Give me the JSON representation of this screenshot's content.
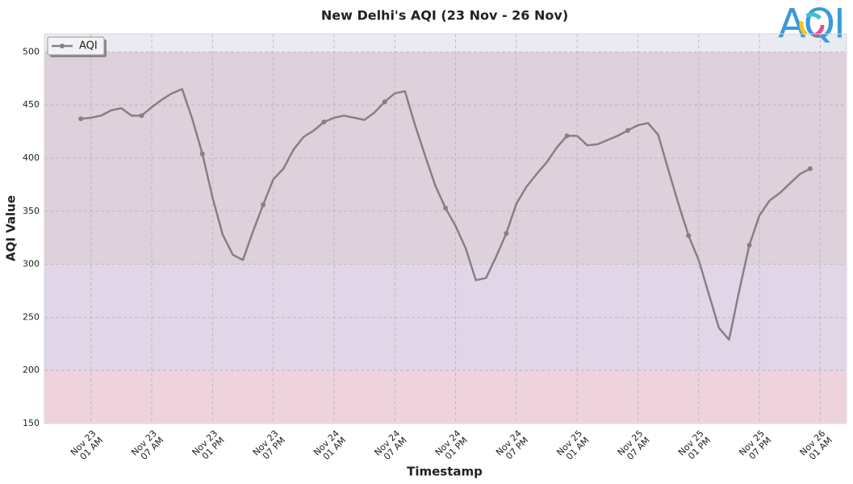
{
  "chart_data": {
    "type": "line",
    "title": "New Delhi's AQI (23 Nov - 26 Nov)",
    "xlabel": "Timestamp",
    "ylabel": "AQI Value",
    "logo": "AQI",
    "legend": "upper left",
    "grid": true,
    "markevery": 6,
    "bands": [
      {
        "from": 150,
        "to": 200,
        "color": "#eed3dc"
      },
      {
        "from": 200,
        "to": 300,
        "color": "#e0d6e8"
      },
      {
        "from": 300,
        "to": 500,
        "color": "#dfd1dc"
      },
      {
        "from": 500,
        "to": 517,
        "color": "#eaeaf2"
      }
    ],
    "xlim": [
      "Nov 22 20:24",
      "Nov 26 03:36"
    ],
    "ylim": [
      150,
      517
    ],
    "yticks": [
      150,
      200,
      250,
      300,
      350,
      400,
      450,
      500
    ],
    "xticks": [
      {
        "value": "Nov 23 01:00",
        "label": "Nov 23\n01 AM"
      },
      {
        "value": "Nov 23 07:00",
        "label": "Nov 23\n07 AM"
      },
      {
        "value": "Nov 23 13:00",
        "label": "Nov 23\n01 PM"
      },
      {
        "value": "Nov 23 19:00",
        "label": "Nov 23\n07 PM"
      },
      {
        "value": "Nov 24 01:00",
        "label": "Nov 24\n01 AM"
      },
      {
        "value": "Nov 24 07:00",
        "label": "Nov 24\n07 AM"
      },
      {
        "value": "Nov 24 13:00",
        "label": "Nov 24\n01 PM"
      },
      {
        "value": "Nov 24 19:00",
        "label": "Nov 24\n07 PM"
      },
      {
        "value": "Nov 25 01:00",
        "label": "Nov 25\n01 AM"
      },
      {
        "value": "Nov 25 07:00",
        "label": "Nov 25\n07 AM"
      },
      {
        "value": "Nov 25 13:00",
        "label": "Nov 25\n01 PM"
      },
      {
        "value": "Nov 25 19:00",
        "label": "Nov 25\n07 PM"
      },
      {
        "value": "Nov 26 01:00",
        "label": "Nov 26\n01 AM"
      }
    ],
    "x": [
      "Nov 23 00:00",
      "Nov 23 01:00",
      "Nov 23 02:00",
      "Nov 23 03:00",
      "Nov 23 04:00",
      "Nov 23 05:00",
      "Nov 23 06:00",
      "Nov 23 07:00",
      "Nov 23 08:00",
      "Nov 23 09:00",
      "Nov 23 10:00",
      "Nov 23 11:00",
      "Nov 23 12:00",
      "Nov 23 13:00",
      "Nov 23 14:00",
      "Nov 23 15:00",
      "Nov 23 16:00",
      "Nov 23 17:00",
      "Nov 23 18:00",
      "Nov 23 19:00",
      "Nov 23 20:00",
      "Nov 23 21:00",
      "Nov 23 22:00",
      "Nov 23 23:00",
      "Nov 24 00:00",
      "Nov 24 01:00",
      "Nov 24 02:00",
      "Nov 24 03:00",
      "Nov 24 04:00",
      "Nov 24 05:00",
      "Nov 24 06:00",
      "Nov 24 07:00",
      "Nov 24 08:00",
      "Nov 24 09:00",
      "Nov 24 10:00",
      "Nov 24 11:00",
      "Nov 24 12:00",
      "Nov 24 13:00",
      "Nov 24 14:00",
      "Nov 24 15:00",
      "Nov 24 16:00",
      "Nov 24 17:00",
      "Nov 24 18:00",
      "Nov 24 19:00",
      "Nov 24 20:00",
      "Nov 24 21:00",
      "Nov 24 22:00",
      "Nov 24 23:00",
      "Nov 25 00:00",
      "Nov 25 01:00",
      "Nov 25 02:00",
      "Nov 25 03:00",
      "Nov 25 04:00",
      "Nov 25 05:00",
      "Nov 25 06:00",
      "Nov 25 07:00",
      "Nov 25 08:00",
      "Nov 25 09:00",
      "Nov 25 10:00",
      "Nov 25 11:00",
      "Nov 25 12:00",
      "Nov 25 13:00",
      "Nov 25 14:00",
      "Nov 25 15:00",
      "Nov 25 16:00",
      "Nov 25 17:00",
      "Nov 25 18:00",
      "Nov 25 19:00",
      "Nov 25 20:00",
      "Nov 25 21:00",
      "Nov 25 22:00",
      "Nov 25 23:00",
      "Nov 26 00:00"
    ],
    "series": [
      {
        "name": "AQI",
        "color": "#858085",
        "values": [
          437,
          438,
          440,
          445,
          447,
          440,
          440,
          448,
          455,
          461,
          465,
          437,
          404,
          363,
          328,
          309,
          304,
          331,
          356,
          380,
          390,
          408,
          420,
          426,
          434,
          438,
          440,
          438,
          436,
          443,
          453,
          461,
          463,
          431,
          402,
          374,
          353,
          336,
          315,
          285,
          287,
          307,
          329,
          357,
          373,
          385,
          396,
          410,
          421,
          421,
          412,
          413,
          417,
          421,
          426,
          431,
          433,
          422,
          389,
          357,
          327,
          304,
          272,
          240,
          229,
          275,
          318,
          346,
          360,
          367,
          376,
          385,
          390
        ]
      }
    ]
  }
}
